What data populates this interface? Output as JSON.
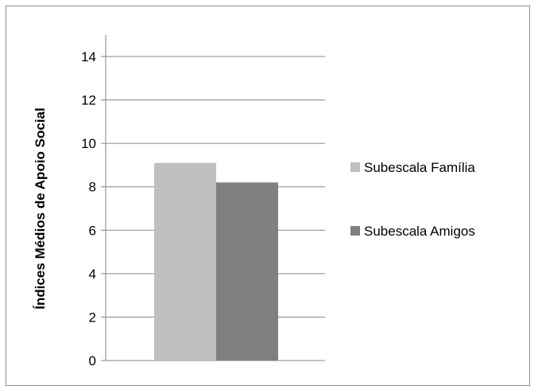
{
  "chart_data": {
    "type": "bar",
    "categories": [
      ""
    ],
    "series": [
      {
        "name": "Subescala Família",
        "values": [
          9.1
        ],
        "color": "#bfbfbf"
      },
      {
        "name": "Subescala Amigos",
        "values": [
          8.2
        ],
        "color": "#808080"
      }
    ],
    "ylabel": "Índices Médios  de Apoio Social",
    "ylim": [
      0,
      14
    ],
    "yticks": [
      0,
      2,
      4,
      6,
      8,
      10,
      12,
      14
    ],
    "grid": true,
    "legend_position": "right"
  }
}
